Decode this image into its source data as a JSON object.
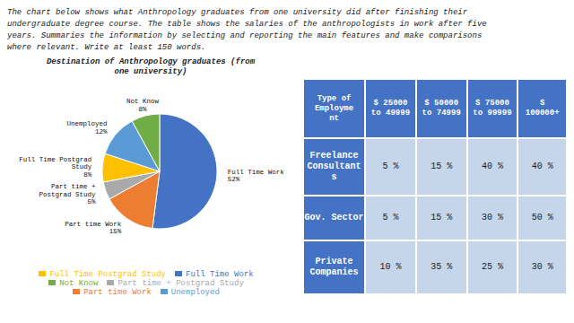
{
  "chart_data": [
    {
      "type": "pie",
      "title": "Destination of Anthropology graduates (from\none university)",
      "annotations": [
        "The chart below shows what Anthropology graduates from one university did after finishing their\nundergraduate degree course. The table shows the salaries of the anthropologists in work after five\nyears. Summaries the information by selecting and reporting the main features and make comparisons\nwhere relevant. Write at least 150 words."
      ],
      "categories": [
        "Full Time Work",
        "Part time Work",
        "Part time + Postgrad Study",
        "Full Time Postgrad Study",
        "Unemployed",
        "Not Know"
      ],
      "values": [
        52,
        15,
        5,
        8,
        12,
        8
      ],
      "value_labels": [
        "Full Time Work\n52%",
        "Part time Work\n15%",
        "Part time +\nPostgrad Study\n5%",
        "Full Time Postgrad\nStudy\n8%",
        "Unemployed\n12%",
        "Not Know\n8%"
      ],
      "colors": [
        "#4472C4",
        "#ED7D31",
        "#A9A9A9",
        "#FFC000",
        "#5B9BD5",
        "#70AD47"
      ],
      "data_labels": true,
      "legend": "bottom"
    },
    {
      "type": "table",
      "columns": [
        "Type of\nEmployme\nnt",
        "$ 25000\nto 49999",
        "$ 50000\nto 74999",
        "$ 75000\nto 99999",
        "$\n100000+"
      ],
      "rows": [
        [
          "Freelance\nConsultant\ns",
          "5 %",
          "15 %",
          "40 %",
          "40 %"
        ],
        [
          "Gov. Sector",
          "5 %",
          "15 %",
          "30 %",
          "50 %"
        ],
        [
          "Private\nCompanies",
          "10 %",
          "35 %",
          "25 %",
          "30 %"
        ]
      ],
      "colors": [
        "#4472C4",
        "#C5D5EA"
      ]
    }
  ]
}
